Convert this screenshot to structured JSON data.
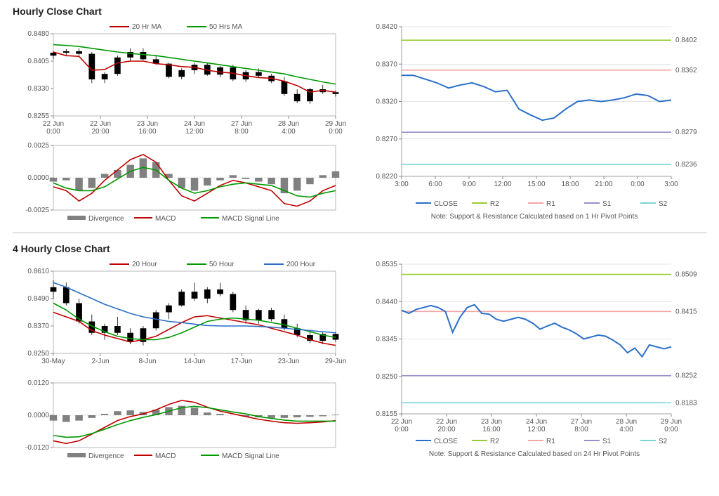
{
  "section1": {
    "title": "Hourly Close Chart",
    "price": {
      "type": "candlestick+line",
      "ylim": [
        0.8255,
        0.848
      ],
      "yticks": [
        0.8255,
        0.833,
        0.8405,
        0.848
      ],
      "xticks": [
        "22 Jun\n0:00",
        "22 Jun\n20:00",
        "23 Jun\n16:00",
        "24 Jun\n12:00",
        "27 Jun\n8:00",
        "28 Jun\n4:00",
        "29 Jun\n0:00"
      ],
      "ma20": {
        "color": "#c00000",
        "label": "20 Hr MA",
        "data": [
          0.843,
          0.842,
          0.8418,
          0.838,
          0.8382,
          0.84,
          0.8405,
          0.8405,
          0.8398,
          0.8395,
          0.839,
          0.8388,
          0.838,
          0.8375,
          0.8372,
          0.8365,
          0.836,
          0.8358,
          0.835,
          0.8338,
          0.832,
          0.8325,
          0.832
        ]
      },
      "ma50": {
        "color": "#009900",
        "label": "50 Hrs MA",
        "data": [
          0.845,
          0.8448,
          0.8445,
          0.844,
          0.8435,
          0.843,
          0.8426,
          0.8423,
          0.842,
          0.8415,
          0.841,
          0.8405,
          0.84,
          0.8395,
          0.839,
          0.8385,
          0.838,
          0.8375,
          0.837,
          0.8362,
          0.8355,
          0.8348,
          0.8342
        ]
      },
      "candles": {
        "color": "#000000",
        "ohlc": [
          [
            0.842,
            0.8432,
            0.841,
            0.8428
          ],
          [
            0.8428,
            0.8438,
            0.8418,
            0.8432
          ],
          [
            0.8432,
            0.844,
            0.842,
            0.8425
          ],
          [
            0.8425,
            0.843,
            0.8345,
            0.8355
          ],
          [
            0.8355,
            0.8375,
            0.8345,
            0.837
          ],
          [
            0.837,
            0.842,
            0.8365,
            0.8415
          ],
          [
            0.8415,
            0.844,
            0.8405,
            0.843
          ],
          [
            0.843,
            0.844,
            0.8408,
            0.841
          ],
          [
            0.841,
            0.8422,
            0.8395,
            0.8398
          ],
          [
            0.8398,
            0.84,
            0.8358,
            0.8362
          ],
          [
            0.8362,
            0.8385,
            0.8355,
            0.838
          ],
          [
            0.838,
            0.84,
            0.837,
            0.8395
          ],
          [
            0.8395,
            0.84,
            0.8365,
            0.8368
          ],
          [
            0.8368,
            0.8392,
            0.836,
            0.8388
          ],
          [
            0.8388,
            0.8395,
            0.835,
            0.8355
          ],
          [
            0.8355,
            0.838,
            0.8348,
            0.8375
          ],
          [
            0.8375,
            0.8385,
            0.836,
            0.8365
          ],
          [
            0.8365,
            0.837,
            0.8345,
            0.835
          ],
          [
            0.835,
            0.8362,
            0.831,
            0.8315
          ],
          [
            0.8315,
            0.8328,
            0.829,
            0.8295
          ],
          [
            0.8295,
            0.8332,
            0.8288,
            0.8328
          ],
          [
            0.8328,
            0.834,
            0.8315,
            0.832
          ],
          [
            0.832,
            0.8325,
            0.8308,
            0.8315
          ]
        ]
      }
    },
    "macd": {
      "ylim": [
        -0.0025,
        0.0025
      ],
      "yticks": [
        -0.0025,
        0.0,
        0.0025
      ],
      "legend": {
        "div": "Divergence",
        "div_color": "#808080",
        "macd": "MACD",
        "macd_color": "#c00000",
        "sig": "MACD Signal Line",
        "sig_color": "#009900"
      },
      "hist": [
        -0.0003,
        -0.0002,
        -0.001,
        -0.0008,
        0.0003,
        0.0006,
        0.001,
        0.0015,
        0.0012,
        0.0003,
        -0.0008,
        -0.001,
        -0.0006,
        -0.0002,
        0.0002,
        -0.0001,
        -0.0003,
        -0.0005,
        -0.0012,
        -0.001,
        -0.0005,
        0.0002,
        0.0005
      ],
      "macd_line": [
        -0.0007,
        -0.001,
        -0.0018,
        -0.0012,
        -0.0002,
        0.0006,
        0.0014,
        0.0018,
        0.0012,
        -0.0002,
        -0.0014,
        -0.0018,
        -0.0012,
        -0.0006,
        -0.0002,
        -0.0004,
        -0.0007,
        -0.001,
        -0.002,
        -0.0022,
        -0.0018,
        -0.001,
        -0.0006
      ],
      "sig_line": [
        -0.0004,
        -0.0008,
        -0.001,
        -0.001,
        -0.0007,
        -0.0001,
        0.0005,
        0.0008,
        0.0006,
        -0.0002,
        -0.0008,
        -0.0012,
        -0.001,
        -0.0007,
        -0.0005,
        -0.0004,
        -0.0005,
        -0.0006,
        -0.001,
        -0.0014,
        -0.0015,
        -0.0012,
        -0.001
      ]
    },
    "sr": {
      "ylim": [
        0.822,
        0.842
      ],
      "yticks": [
        0.822,
        0.827,
        0.832,
        0.837,
        0.842
      ],
      "xticks": [
        "3:00",
        "6:00",
        "9:00",
        "12:00",
        "15:00",
        "18:00",
        "21:00",
        "0:00",
        "3:00"
      ],
      "close": {
        "color": "#2a6fc9",
        "label": "CLOSE",
        "data": [
          0.8355,
          0.8355,
          0.835,
          0.8345,
          0.8338,
          0.8342,
          0.8345,
          0.834,
          0.8333,
          0.8335,
          0.831,
          0.8302,
          0.8295,
          0.8298,
          0.831,
          0.832,
          0.8322,
          0.832,
          0.8322,
          0.8325,
          0.833,
          0.8328,
          0.832,
          0.8322
        ]
      },
      "levels": [
        {
          "key": "R2",
          "label": "R2",
          "color": "#9acd32",
          "y": 0.8402,
          "text": "0.8402"
        },
        {
          "key": "R1",
          "label": "R1",
          "color": "#f4a6a6",
          "y": 0.8362,
          "text": "0.8362"
        },
        {
          "key": "S1",
          "label": "S1",
          "color": "#9a8ec9",
          "y": 0.8279,
          "text": "0.8279"
        },
        {
          "key": "S2",
          "label": "S2",
          "color": "#7dd3d8",
          "y": 0.8236,
          "text": "0.8236"
        }
      ],
      "note": "Note: Support & Resistance Calculated based on 1 Hr Pivot Points"
    }
  },
  "section2": {
    "title": "4 Hourly Close Chart",
    "price": {
      "type": "candlestick+line",
      "ylim": [
        0.825,
        0.861
      ],
      "yticks": [
        0.825,
        0.837,
        0.849,
        0.861
      ],
      "xticks": [
        "30-May",
        "2-Jun",
        "8-Jun",
        "14-Jun",
        "17-Jun",
        "23-Jun",
        "29-Jun"
      ],
      "ma20": {
        "color": "#c00000",
        "label": "20 Hour",
        "data": [
          0.843,
          0.841,
          0.839,
          0.835,
          0.833,
          0.8315,
          0.83,
          0.831,
          0.8325,
          0.8355,
          0.8385,
          0.841,
          0.8415,
          0.8405,
          0.8395,
          0.8385,
          0.8375,
          0.836,
          0.8345,
          0.833,
          0.831,
          0.8295,
          0.8285
        ]
      },
      "ma50": {
        "color": "#009900",
        "label": "50 Hour",
        "data": [
          0.847,
          0.844,
          0.84,
          0.837,
          0.8345,
          0.8325,
          0.8315,
          0.831,
          0.831,
          0.832,
          0.834,
          0.8365,
          0.839,
          0.84,
          0.8405,
          0.84,
          0.8395,
          0.8385,
          0.8375,
          0.836,
          0.8345,
          0.833,
          0.832
        ]
      },
      "ma200": {
        "color": "#2a6fc9",
        "label": "200 Hour",
        "data": [
          0.856,
          0.854,
          0.8515,
          0.849,
          0.8465,
          0.8445,
          0.8425,
          0.841,
          0.84,
          0.839,
          0.8385,
          0.8378,
          0.8372,
          0.837,
          0.837,
          0.837,
          0.8368,
          0.8365,
          0.836,
          0.8355,
          0.835,
          0.8345,
          0.834
        ]
      },
      "candles": {
        "color": "#000000",
        "ohlc": [
          [
            0.852,
            0.857,
            0.849,
            0.854
          ],
          [
            0.854,
            0.856,
            0.846,
            0.847
          ],
          [
            0.847,
            0.849,
            0.838,
            0.839
          ],
          [
            0.839,
            0.842,
            0.833,
            0.834
          ],
          [
            0.834,
            0.838,
            0.831,
            0.837
          ],
          [
            0.837,
            0.841,
            0.833,
            0.834
          ],
          [
            0.834,
            0.836,
            0.829,
            0.83
          ],
          [
            0.83,
            0.837,
            0.8285,
            0.836
          ],
          [
            0.836,
            0.844,
            0.835,
            0.843
          ],
          [
            0.843,
            0.847,
            0.84,
            0.846
          ],
          [
            0.846,
            0.853,
            0.8455,
            0.852
          ],
          [
            0.852,
            0.856,
            0.848,
            0.849
          ],
          [
            0.849,
            0.854,
            0.847,
            0.853
          ],
          [
            0.853,
            0.856,
            0.85,
            0.851
          ],
          [
            0.851,
            0.852,
            0.843,
            0.844
          ],
          [
            0.844,
            0.846,
            0.838,
            0.8395
          ],
          [
            0.8395,
            0.8445,
            0.838,
            0.844
          ],
          [
            0.844,
            0.845,
            0.839,
            0.84
          ],
          [
            0.84,
            0.842,
            0.835,
            0.836
          ],
          [
            0.836,
            0.838,
            0.832,
            0.833
          ],
          [
            0.833,
            0.835,
            0.8295,
            0.8305
          ],
          [
            0.8305,
            0.8345,
            0.829,
            0.8335
          ],
          [
            0.8335,
            0.8345,
            0.83,
            0.831
          ]
        ]
      }
    },
    "macd": {
      "ylim": [
        -0.012,
        0.012
      ],
      "yticks": [
        -0.012,
        0.0,
        0.012
      ],
      "legend": {
        "div": "Divergence",
        "div_color": "#808080",
        "macd": "MACD",
        "macd_color": "#c00000",
        "sig": "MACD Signal Line",
        "sig_color": "#009900"
      },
      "hist": [
        -0.002,
        -0.0025,
        -0.002,
        -0.001,
        0.0005,
        0.0015,
        0.0018,
        0.0012,
        0.002,
        0.003,
        0.0035,
        0.0028,
        0.001,
        0.0005,
        0.0,
        -0.0005,
        -0.0008,
        -0.001,
        -0.001,
        -0.0008,
        -0.0006,
        -0.0004,
        0.0002
      ],
      "macd_line": [
        -0.0095,
        -0.0105,
        -0.0095,
        -0.007,
        -0.0045,
        -0.002,
        -0.0005,
        0.0005,
        0.002,
        0.004,
        0.0055,
        0.0048,
        0.003,
        0.0015,
        0.0005,
        -0.0005,
        -0.0015,
        -0.0022,
        -0.0028,
        -0.003,
        -0.0028,
        -0.0025,
        -0.002
      ],
      "sig_line": [
        -0.0075,
        -0.0082,
        -0.008,
        -0.0068,
        -0.0052,
        -0.0035,
        -0.002,
        -0.0008,
        0.0002,
        0.0015,
        0.0028,
        0.0033,
        0.0028,
        0.002,
        0.0012,
        0.0005,
        -0.0005,
        -0.0012,
        -0.0018,
        -0.0022,
        -0.0022,
        -0.0022,
        -0.0022
      ]
    },
    "sr": {
      "ylim": [
        0.8155,
        0.8535
      ],
      "yticks": [
        0.8155,
        0.825,
        0.8345,
        0.844,
        0.8535
      ],
      "xticks": [
        "22 Jun\n0:00",
        "22 Jun\n20:00",
        "23 Jun\n16:00",
        "24 Jun\n12:00",
        "27 Jun\n8:00",
        "28 Jun\n4:00",
        "29 Jun\n0:00"
      ],
      "close": {
        "color": "#2a6fc9",
        "label": "CLOSE",
        "data": [
          0.8418,
          0.841,
          0.842,
          0.8425,
          0.843,
          0.8425,
          0.8415,
          0.8362,
          0.84,
          0.8425,
          0.8432,
          0.841,
          0.8408,
          0.8395,
          0.839,
          0.8395,
          0.84,
          0.8395,
          0.8385,
          0.837,
          0.8378,
          0.8385,
          0.8375,
          0.8368,
          0.8358,
          0.8345,
          0.835,
          0.8355,
          0.8352,
          0.8342,
          0.833,
          0.831,
          0.8322,
          0.83,
          0.833,
          0.8325,
          0.832,
          0.8325
        ]
      },
      "levels": [
        {
          "key": "R2",
          "label": "R2",
          "color": "#9acd32",
          "y": 0.8509,
          "text": "0.8509"
        },
        {
          "key": "R1",
          "label": "R1",
          "color": "#f4a6a6",
          "y": 0.8415,
          "text": "0.8415"
        },
        {
          "key": "S1",
          "label": "S1",
          "color": "#9a8ec9",
          "y": 0.8252,
          "text": "0.8252"
        },
        {
          "key": "S2",
          "label": "S2",
          "color": "#7dd3d8",
          "y": 0.8183,
          "text": "0.8183"
        }
      ],
      "note": "Note: Support & Resistance Calculated based on 24 Hr Pivot Points"
    }
  },
  "style": {
    "grid_color": "#888888",
    "axis_color": "#555555",
    "text_color": "#555555",
    "bg": "#ffffff"
  }
}
